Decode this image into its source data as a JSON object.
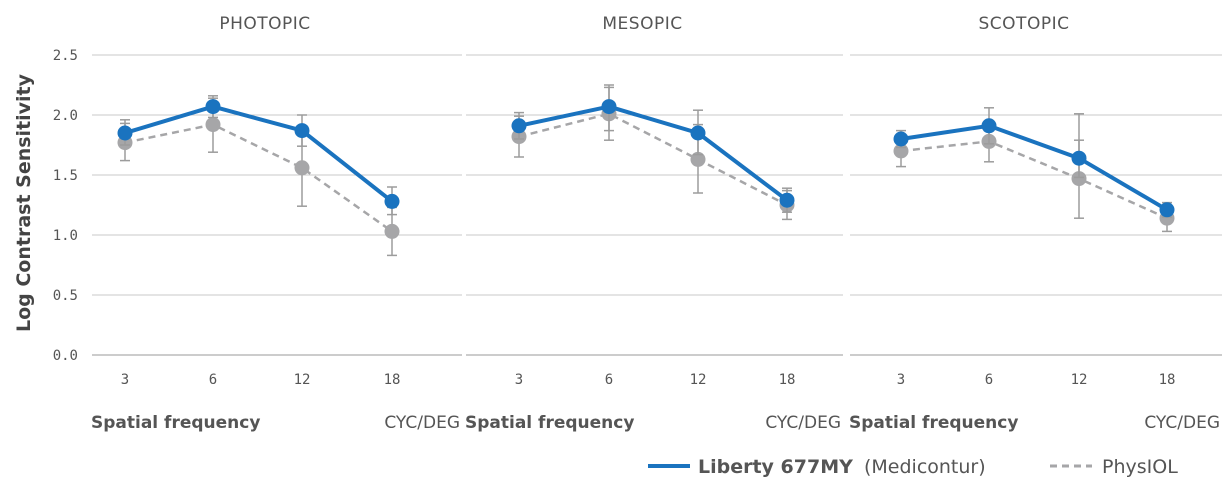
{
  "chart_data": {
    "type": "line",
    "ylabel": "Log Contrast Sensitivity",
    "ylim": [
      0,
      2.5
    ],
    "yticks": [
      "0.0",
      "0.5",
      "1.0",
      "1.5",
      "2.0",
      "2.5"
    ],
    "grid": "horizontal",
    "legend_position": "bottom-right",
    "colors": {
      "liberty": "#1a73bf",
      "physiol": "#a6a6a8",
      "grid": "#c8c8c8"
    },
    "legend": {
      "liberty_bold": "Liberty 677MY",
      "liberty_rest": "(Medicontur)",
      "physiol": "PhysIOL"
    },
    "panels": [
      {
        "title": "PHOTOPIC",
        "categories": [
          "3",
          "6",
          "12",
          "18"
        ],
        "xlabel": "Spatial frequency",
        "xunit": "CYC/DEG",
        "series": [
          {
            "name": "Liberty 677MY (Medicontur)",
            "style": "solid",
            "values": [
              1.85,
              2.07,
              1.87,
              1.28
            ],
            "err_low": [
              1.75,
              1.98,
              1.74,
              1.17
            ],
            "err_high": [
              1.96,
              2.16,
              2.0,
              1.4
            ]
          },
          {
            "name": "PhysIOL",
            "style": "dashed",
            "values": [
              1.77,
              1.92,
              1.56,
              1.03
            ],
            "err_low": [
              1.62,
              1.69,
              1.24,
              0.83
            ],
            "err_high": [
              1.93,
              2.14,
              1.87,
              1.23
            ]
          }
        ]
      },
      {
        "title": "MESOPIC",
        "categories": [
          "3",
          "6",
          "12",
          "18"
        ],
        "xlabel": "Spatial frequency",
        "xunit": "CYC/DEG",
        "series": [
          {
            "name": "Liberty 677MY (Medicontur)",
            "style": "solid",
            "values": [
              1.91,
              2.07,
              1.85,
              1.29
            ],
            "err_low": [
              1.8,
              1.87,
              1.67,
              1.19
            ],
            "err_high": [
              2.02,
              2.25,
              2.04,
              1.39
            ]
          },
          {
            "name": "PhysIOL",
            "style": "dashed",
            "values": [
              1.82,
              2.01,
              1.63,
              1.25
            ],
            "err_low": [
              1.65,
              1.79,
              1.35,
              1.13
            ],
            "err_high": [
              1.99,
              2.23,
              1.92,
              1.37
            ]
          }
        ]
      },
      {
        "title": "SCOTOPIC",
        "categories": [
          "3",
          "6",
          "12",
          "18"
        ],
        "xlabel": "Spatial frequency",
        "xunit": "CYC/DEG",
        "series": [
          {
            "name": "Liberty 677MY (Medicontur)",
            "style": "solid",
            "values": [
              1.8,
              1.91,
              1.64,
              1.21
            ],
            "err_low": [
              1.73,
              1.76,
              1.48,
              1.15
            ],
            "err_high": [
              1.87,
              2.06,
              1.79,
              1.27
            ]
          },
          {
            "name": "PhysIOL",
            "style": "dashed",
            "values": [
              1.7,
              1.78,
              1.47,
              1.14
            ],
            "err_low": [
              1.57,
              1.61,
              1.14,
              1.03
            ],
            "err_high": [
              1.83,
              1.95,
              2.01,
              1.25
            ]
          }
        ]
      }
    ]
  }
}
